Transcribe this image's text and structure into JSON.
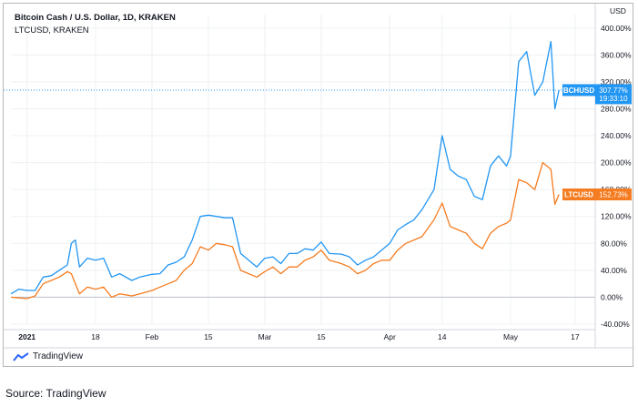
{
  "header": {
    "title": "Bitcoin Cash / U.S. Dollar, 1D, KRAKEN",
    "subtitle": "LTCUSD, KRAKEN"
  },
  "footer": {
    "logo_text": "TradingView",
    "source": "Source: TradingView"
  },
  "chart_data": {
    "type": "line",
    "y_unit_label": "USD",
    "ylim": [
      -40,
      420
    ],
    "y_ticks": [
      400,
      360,
      320,
      280,
      240,
      200,
      160,
      120,
      80,
      40,
      0,
      -40
    ],
    "y_tick_labels": [
      "400.00%",
      "360.00%",
      "320.00%",
      "280.00%",
      "240.00%",
      "200.00%",
      "160.00%",
      "120.00%",
      "80.00%",
      "40.00%",
      "0.00%",
      "-40.00%"
    ],
    "xlim": [
      "2020-12-28",
      "2021-05-22"
    ],
    "x_ticks": [
      {
        "date": "2021-01-01",
        "label": "2021",
        "bold": true
      },
      {
        "date": "2021-01-18",
        "label": "18",
        "bold": false
      },
      {
        "date": "2021-02-01",
        "label": "Feb",
        "bold": false
      },
      {
        "date": "2021-02-15",
        "label": "15",
        "bold": false
      },
      {
        "date": "2021-03-01",
        "label": "Mar",
        "bold": false
      },
      {
        "date": "2021-03-15",
        "label": "15",
        "bold": false
      },
      {
        "date": "2021-04-01",
        "label": "Apr",
        "bold": false
      },
      {
        "date": "2021-04-14",
        "label": "14",
        "bold": false
      },
      {
        "date": "2021-05-01",
        "label": "May",
        "bold": false
      },
      {
        "date": "2021-05-17",
        "label": "17",
        "bold": false
      }
    ],
    "grid": true,
    "series": [
      {
        "name": "BCHUSD",
        "color": "#2196f3",
        "last_value_label": "307.77%",
        "countdown": "19:33:10",
        "points": [
          [
            "2020-12-28",
            5
          ],
          [
            "2020-12-30",
            12
          ],
          [
            "2021-01-01",
            10
          ],
          [
            "2021-01-03",
            10
          ],
          [
            "2021-01-05",
            30
          ],
          [
            "2021-01-07",
            32
          ],
          [
            "2021-01-09",
            40
          ],
          [
            "2021-01-11",
            48
          ],
          [
            "2021-01-12",
            80
          ],
          [
            "2021-01-13",
            85
          ],
          [
            "2021-01-14",
            45
          ],
          [
            "2021-01-16",
            58
          ],
          [
            "2021-01-18",
            55
          ],
          [
            "2021-01-20",
            58
          ],
          [
            "2021-01-22",
            30
          ],
          [
            "2021-01-24",
            35
          ],
          [
            "2021-01-27",
            25
          ],
          [
            "2021-01-29",
            30
          ],
          [
            "2021-02-01",
            34
          ],
          [
            "2021-02-03",
            35
          ],
          [
            "2021-02-05",
            48
          ],
          [
            "2021-02-07",
            52
          ],
          [
            "2021-02-09",
            60
          ],
          [
            "2021-02-11",
            85
          ],
          [
            "2021-02-13",
            120
          ],
          [
            "2021-02-15",
            122
          ],
          [
            "2021-02-17",
            120
          ],
          [
            "2021-02-19",
            118
          ],
          [
            "2021-02-21",
            118
          ],
          [
            "2021-02-23",
            65
          ],
          [
            "2021-02-25",
            55
          ],
          [
            "2021-02-27",
            45
          ],
          [
            "2021-03-01",
            58
          ],
          [
            "2021-03-03",
            60
          ],
          [
            "2021-03-05",
            50
          ],
          [
            "2021-03-07",
            65
          ],
          [
            "2021-03-09",
            65
          ],
          [
            "2021-03-11",
            72
          ],
          [
            "2021-03-13",
            70
          ],
          [
            "2021-03-15",
            82
          ],
          [
            "2021-03-17",
            65
          ],
          [
            "2021-03-20",
            64
          ],
          [
            "2021-03-22",
            60
          ],
          [
            "2021-03-24",
            48
          ],
          [
            "2021-03-26",
            55
          ],
          [
            "2021-03-28",
            60
          ],
          [
            "2021-03-30",
            70
          ],
          [
            "2021-04-01",
            80
          ],
          [
            "2021-04-03",
            100
          ],
          [
            "2021-04-05",
            108
          ],
          [
            "2021-04-07",
            115
          ],
          [
            "2021-04-09",
            130
          ],
          [
            "2021-04-12",
            160
          ],
          [
            "2021-04-14",
            240
          ],
          [
            "2021-04-16",
            190
          ],
          [
            "2021-04-18",
            180
          ],
          [
            "2021-04-20",
            175
          ],
          [
            "2021-04-22",
            150
          ],
          [
            "2021-04-24",
            145
          ],
          [
            "2021-04-26",
            195
          ],
          [
            "2021-04-28",
            210
          ],
          [
            "2021-04-30",
            195
          ],
          [
            "2021-05-01",
            210
          ],
          [
            "2021-05-03",
            350
          ],
          [
            "2021-05-05",
            365
          ],
          [
            "2021-05-07",
            300
          ],
          [
            "2021-05-09",
            320
          ],
          [
            "2021-05-11",
            380
          ],
          [
            "2021-05-12",
            280
          ],
          [
            "2021-05-13",
            307.77
          ]
        ]
      },
      {
        "name": "LTCUSD",
        "color": "#f57c20",
        "last_value_label": "152.73%",
        "points": [
          [
            "2020-12-28",
            0
          ],
          [
            "2020-12-30",
            -1
          ],
          [
            "2021-01-01",
            -2
          ],
          [
            "2021-01-03",
            2
          ],
          [
            "2021-01-05",
            20
          ],
          [
            "2021-01-07",
            25
          ],
          [
            "2021-01-09",
            30
          ],
          [
            "2021-01-11",
            38
          ],
          [
            "2021-01-12",
            35
          ],
          [
            "2021-01-14",
            5
          ],
          [
            "2021-01-16",
            15
          ],
          [
            "2021-01-18",
            12
          ],
          [
            "2021-01-20",
            15
          ],
          [
            "2021-01-22",
            0
          ],
          [
            "2021-01-24",
            5
          ],
          [
            "2021-01-27",
            2
          ],
          [
            "2021-01-29",
            5
          ],
          [
            "2021-02-01",
            10
          ],
          [
            "2021-02-03",
            15
          ],
          [
            "2021-02-05",
            20
          ],
          [
            "2021-02-07",
            25
          ],
          [
            "2021-02-09",
            40
          ],
          [
            "2021-02-11",
            50
          ],
          [
            "2021-02-13",
            75
          ],
          [
            "2021-02-15",
            70
          ],
          [
            "2021-02-17",
            80
          ],
          [
            "2021-02-19",
            78
          ],
          [
            "2021-02-21",
            75
          ],
          [
            "2021-02-23",
            40
          ],
          [
            "2021-02-25",
            35
          ],
          [
            "2021-02-27",
            30
          ],
          [
            "2021-03-01",
            38
          ],
          [
            "2021-03-03",
            45
          ],
          [
            "2021-03-05",
            35
          ],
          [
            "2021-03-07",
            45
          ],
          [
            "2021-03-09",
            45
          ],
          [
            "2021-03-11",
            55
          ],
          [
            "2021-03-13",
            60
          ],
          [
            "2021-03-15",
            70
          ],
          [
            "2021-03-17",
            55
          ],
          [
            "2021-03-20",
            50
          ],
          [
            "2021-03-22",
            45
          ],
          [
            "2021-03-24",
            35
          ],
          [
            "2021-03-26",
            40
          ],
          [
            "2021-03-28",
            50
          ],
          [
            "2021-03-30",
            55
          ],
          [
            "2021-04-01",
            55
          ],
          [
            "2021-04-03",
            70
          ],
          [
            "2021-04-05",
            80
          ],
          [
            "2021-04-07",
            85
          ],
          [
            "2021-04-09",
            90
          ],
          [
            "2021-04-12",
            115
          ],
          [
            "2021-04-14",
            140
          ],
          [
            "2021-04-16",
            105
          ],
          [
            "2021-04-18",
            100
          ],
          [
            "2021-04-20",
            95
          ],
          [
            "2021-04-22",
            80
          ],
          [
            "2021-04-24",
            72
          ],
          [
            "2021-04-26",
            95
          ],
          [
            "2021-04-28",
            105
          ],
          [
            "2021-04-30",
            110
          ],
          [
            "2021-05-01",
            115
          ],
          [
            "2021-05-03",
            175
          ],
          [
            "2021-05-05",
            170
          ],
          [
            "2021-05-07",
            160
          ],
          [
            "2021-05-09",
            200
          ],
          [
            "2021-05-11",
            190
          ],
          [
            "2021-05-12",
            138
          ],
          [
            "2021-05-13",
            152.73
          ]
        ]
      }
    ],
    "reference_line_value": 0
  }
}
